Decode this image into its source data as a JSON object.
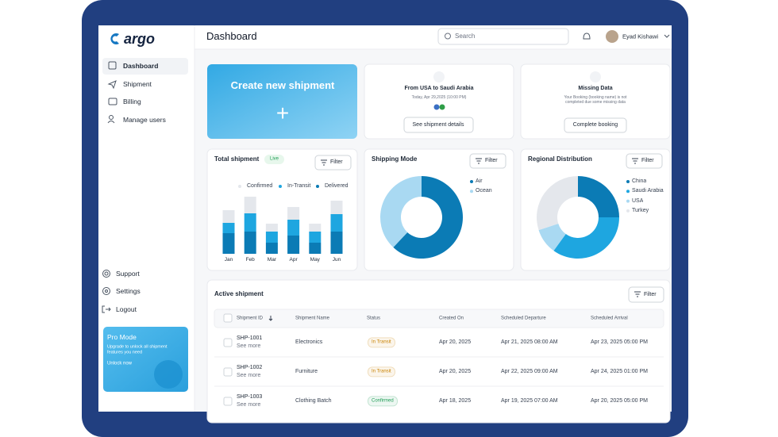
{
  "sidebar": {
    "brand": "argo",
    "nav": [
      "Dashboard",
      "Shipment",
      "Billing",
      "Manage users"
    ],
    "footer_nav": [
      "Support",
      "Settings",
      "Logout"
    ],
    "promo": {
      "title": "Pro Mode",
      "text": "Upgrade to unlock all shipment features you need",
      "link": "Unlock now"
    }
  },
  "header": {
    "title": "Dashboard",
    "search": "Search",
    "user": "Eyad Kishawi"
  },
  "create_card": {
    "title": "Create new shipment",
    "icon": "+"
  },
  "route_card": {
    "title": "From USA to Saudi Arabia",
    "date": "Today, Apr 29,2025 (10:00 PM)",
    "button": "See shipment details"
  },
  "missing_card": {
    "title": "Missing Data",
    "text": "Your Booking (booking name) is not completed due some missing data",
    "button": "Complete booking"
  },
  "chart_data": [
    {
      "type": "bar",
      "title": "Total shipment",
      "badge": "Live",
      "filter": "Filter",
      "categories": [
        "Jan",
        "Feb",
        "Mar",
        "Apr",
        "May",
        "Jun"
      ],
      "series": [
        {
          "name": "Confirmed",
          "color": "#e4e7ec",
          "values": [
            16,
            21,
            10,
            16,
            10,
            17
          ]
        },
        {
          "name": "In-Transit",
          "color": "#1ea6e0",
          "values": [
            13,
            23,
            14,
            20,
            14,
            22
          ]
        },
        {
          "name": "Delivered",
          "color": "#0b7bb5",
          "values": [
            26,
            28,
            14,
            23,
            14,
            28
          ]
        }
      ]
    },
    {
      "type": "pie",
      "title": "Shipping Mode",
      "filter": "Filter",
      "categories": [
        "Air",
        "Ocean"
      ],
      "values": [
        62,
        38
      ],
      "colors": [
        "#0b7bb5",
        "#a9d9f2"
      ]
    },
    {
      "type": "pie",
      "title": "Regional Distribution",
      "filter": "Filter",
      "categories": [
        "China",
        "Saudi Arabia",
        "USA",
        "Turkey"
      ],
      "values": [
        25,
        35,
        10,
        30
      ],
      "colors": [
        "#0b7bb5",
        "#1ea6e0",
        "#a9d9f2",
        "#e4e7ec"
      ]
    }
  ],
  "table": {
    "title": "Active shipment",
    "filter": "Filter",
    "columns": [
      "Shipment ID",
      "Shipment Name",
      "Status",
      "Created On",
      "Scheduled Departure",
      "Scheduled Arrival"
    ],
    "rows": [
      {
        "id": "SHP-1001",
        "link": "See more",
        "name": "Electronics",
        "status": "In Transit",
        "status_color": "#c98200",
        "created": "Apr 20, 2025",
        "departure": "Apr 21, 2025 08:00 AM",
        "arrival": "Apr 23, 2025 05:00 PM"
      },
      {
        "id": "SHP-1002",
        "link": "See more",
        "name": "Furniture",
        "status": "In Transit",
        "status_color": "#c98200",
        "created": "Apr 20, 2025",
        "departure": "Apr 22, 2025 09:00 AM",
        "arrival": "Apr 24, 2025 01:00 PM"
      },
      {
        "id": "SHP-1003",
        "link": "See more",
        "name": "Clothing Batch",
        "status": "Confirmed",
        "status_color": "#1f9d55",
        "created": "Apr 18, 2025",
        "departure": "Apr 19, 2025 07:00 AM",
        "arrival": "Apr 20, 2025 05:00 PM"
      }
    ]
  }
}
